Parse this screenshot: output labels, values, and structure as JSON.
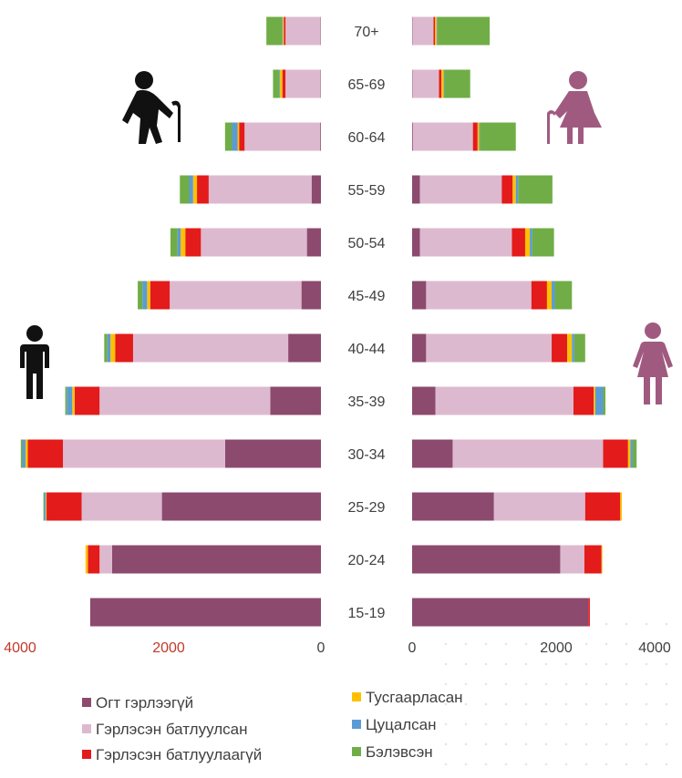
{
  "chart_data": {
    "type": "bar",
    "subtype": "population-pyramid-stacked",
    "categories": [
      "70+",
      "65-69",
      "60-64",
      "55-59",
      "50-54",
      "45-49",
      "40-44",
      "35-39",
      "30-34",
      "25-29",
      "20-24",
      "15-19"
    ],
    "series": [
      {
        "name": "Огт гэрлээгүй",
        "color": "#8c4a6e",
        "male": [
          5,
          5,
          10,
          120,
          180,
          250,
          420,
          650,
          1230,
          2040,
          2680,
          2960
        ],
        "female": [
          5,
          5,
          10,
          100,
          100,
          180,
          180,
          300,
          520,
          1050,
          1900,
          2260
        ]
      },
      {
        "name": "Гэрлэсэн батлуулсан",
        "color": "#ddb9cf",
        "male": [
          450,
          450,
          970,
          1320,
          1360,
          1690,
          1990,
          2190,
          2080,
          1030,
          160,
          0
        ],
        "female": [
          270,
          340,
          770,
          1050,
          1180,
          1350,
          1610,
          1770,
          1930,
          1170,
          310,
          0
        ],
        "female_end_note": ""
      },
      {
        "name": "Гэрлэсэн батлуулаагүй",
        "color": "#e31b1b",
        "male": [
          20,
          40,
          70,
          150,
          200,
          250,
          230,
          320,
          450,
          450,
          150,
          0
        ],
        "female": [
          20,
          30,
          60,
          140,
          170,
          200,
          200,
          260,
          320,
          450,
          220,
          20
        ]
      },
      {
        "name": "Тусгаарласан",
        "color": "#ffc000",
        "male": [
          15,
          30,
          20,
          50,
          60,
          40,
          60,
          30,
          30,
          10,
          30,
          0
        ],
        "female": [
          20,
          30,
          20,
          40,
          60,
          60,
          60,
          20,
          30,
          20,
          10,
          0
        ]
      },
      {
        "name": "Цуцалсан",
        "color": "#5b9bd5",
        "male": [
          10,
          10,
          70,
          50,
          40,
          60,
          40,
          70,
          40,
          20,
          0,
          0
        ],
        "female": [
          10,
          10,
          10,
          30,
          30,
          40,
          30,
          100,
          30,
          0,
          0,
          0
        ],
        "female_fill": ""
      },
      {
        "name": "Бэлэвсэн",
        "color": "#70ad47",
        "male": [
          200,
          80,
          90,
          120,
          90,
          60,
          40,
          20,
          20,
          10,
          0,
          0
        ],
        "female": [
          670,
          330,
          460,
          440,
          280,
          220,
          140,
          30,
          50,
          0,
          0,
          0
        ]
      }
    ],
    "x_axis": {
      "ticks": [
        "4000",
        "2000",
        "0",
        "0",
        "2000",
        "4000"
      ],
      "range_each_side": [
        0,
        4000
      ]
    },
    "legend_position": "bottom",
    "grid": false
  },
  "icons": {
    "elderly_man": "elderly-man-icon",
    "elderly_woman": "elderly-woman-icon",
    "man": "man-icon",
    "woman": "woman-icon"
  }
}
